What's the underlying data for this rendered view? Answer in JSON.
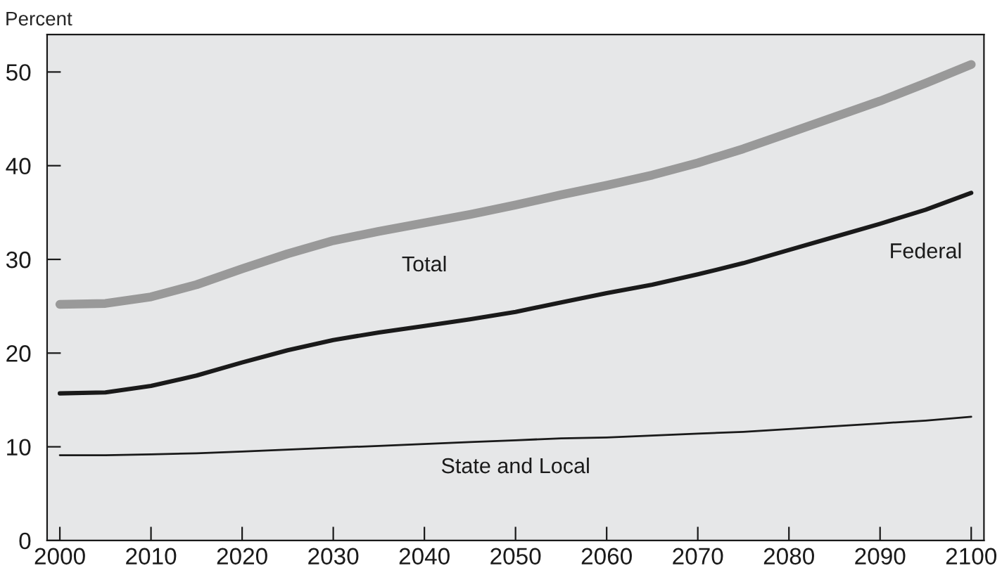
{
  "chart_data": {
    "type": "line",
    "ylabel": "Percent",
    "x": [
      2000,
      2005,
      2010,
      2015,
      2020,
      2025,
      2030,
      2035,
      2040,
      2045,
      2050,
      2055,
      2060,
      2065,
      2070,
      2075,
      2080,
      2085,
      2090,
      2095,
      2100
    ],
    "series": [
      {
        "name": "Total",
        "color": "#999999",
        "values": [
          25.2,
          25.3,
          26.0,
          27.3,
          29.0,
          30.6,
          32.0,
          33.0,
          33.9,
          34.8,
          35.8,
          36.9,
          37.9,
          39.0,
          40.3,
          41.8,
          43.5,
          45.2,
          46.9,
          48.8,
          50.8
        ]
      },
      {
        "name": "Federal",
        "color": "#1a1a1a",
        "values": [
          15.7,
          15.8,
          16.5,
          17.6,
          19.0,
          20.3,
          21.4,
          22.2,
          22.9,
          23.6,
          24.4,
          25.4,
          26.4,
          27.3,
          28.4,
          29.6,
          31.0,
          32.4,
          33.8,
          35.3,
          37.1
        ]
      },
      {
        "name": "State and Local",
        "color": "#1a1a1a",
        "values": [
          9.1,
          9.1,
          9.2,
          9.3,
          9.5,
          9.7,
          9.9,
          10.1,
          10.3,
          10.5,
          10.7,
          10.9,
          11.0,
          11.2,
          11.4,
          11.6,
          11.9,
          12.2,
          12.5,
          12.8,
          13.2
        ]
      }
    ],
    "xlim": [
      1998.6,
      2101.4
    ],
    "ylim": [
      0,
      54
    ],
    "xticks": [
      2000,
      2010,
      2020,
      2030,
      2040,
      2050,
      2060,
      2070,
      2080,
      2090,
      2100
    ],
    "yticks": [
      0,
      10,
      20,
      30,
      40,
      50
    ],
    "grid": false,
    "legend": false
  }
}
